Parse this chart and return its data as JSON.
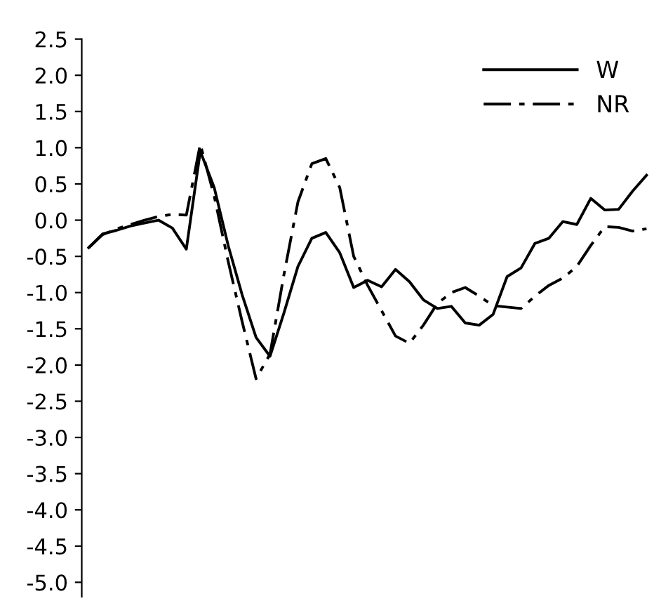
{
  "chart_data": {
    "type": "line",
    "categories": [
      null,
      null,
      null,
      null,
      null,
      null,
      null,
      null,
      null,
      null,
      null,
      null,
      null,
      null,
      null,
      null,
      null,
      null,
      null,
      null,
      null,
      null,
      null,
      null,
      null,
      null,
      null,
      null,
      null,
      null,
      null,
      null,
      null,
      null,
      null,
      null,
      null,
      null,
      null,
      null,
      null
    ],
    "series": [
      {
        "name": "W",
        "color": "#000000",
        "line_style": "solid",
        "values": [
          -0.38,
          -0.19,
          -0.14,
          -0.08,
          -0.04,
          0.0,
          -0.11,
          -0.4,
          0.95,
          0.45,
          -0.35,
          -1.03,
          -1.62,
          -1.88,
          -1.28,
          -0.64,
          -0.25,
          -0.17,
          -0.45,
          -0.93,
          -0.83,
          -0.92,
          -0.68,
          -0.85,
          -1.1,
          -1.22,
          -1.19,
          -1.42,
          -1.45,
          -1.3,
          -0.78,
          -0.66,
          -0.32,
          -0.25,
          -0.02,
          -0.06,
          0.3,
          0.14,
          0.15,
          0.4,
          0.62
        ]
      },
      {
        "name": "NR",
        "color": "#000000",
        "line_style": "dashed",
        "values": [
          -0.38,
          -0.2,
          -0.12,
          -0.06,
          0.0,
          0.05,
          0.08,
          0.07,
          1.05,
          0.33,
          -0.57,
          -1.4,
          -2.19,
          -1.85,
          -0.75,
          0.25,
          0.78,
          0.85,
          0.45,
          -0.5,
          -0.9,
          -1.25,
          -1.6,
          -1.7,
          -1.45,
          -1.15,
          -1.0,
          -0.93,
          -1.05,
          -1.18,
          -1.2,
          -1.22,
          -1.05,
          -0.9,
          -0.8,
          -0.64,
          -0.35,
          -0.09,
          -0.1,
          -0.15,
          -0.12
        ]
      }
    ],
    "ylim": [
      -5.2,
      2.5
    ],
    "yticks": [
      2.5,
      {
        "value": 2,
        "label": "2.0"
      },
      1.5,
      {
        "value": 1,
        "label": "1.0"
      },
      0.5,
      {
        "value": 0,
        "label": "0.0"
      },
      -0.5,
      {
        "value": -1,
        "label": "-1.0"
      },
      -1.5,
      {
        "value": -2,
        "label": "-2.0"
      },
      -2.5,
      {
        "value": -3,
        "label": "-3.0"
      },
      -3.5,
      {
        "value": -4,
        "label": "-4.0"
      },
      -4.5,
      {
        "value": -5,
        "label": "-5.0"
      }
    ],
    "tick_labels": "y",
    "grid": false,
    "legend": "top right",
    "marker": "none"
  }
}
